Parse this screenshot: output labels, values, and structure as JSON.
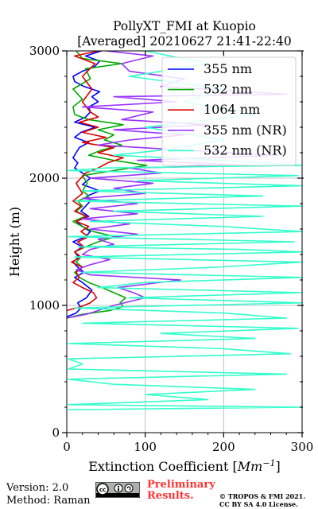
{
  "chart_data": {
    "type": "line",
    "title": "PollyXT_FMI at Kuopio",
    "subtitle": "[Averaged] 20210627 21:41-22:40",
    "xlabel_text": "Extinction Coefficient [",
    "xlabel_unit": "Mm",
    "xlabel_exp": "−1",
    "xlabel_close": "]",
    "ylabel": "Height (m)",
    "xlim": [
      0,
      300
    ],
    "ylim": [
      0,
      3000
    ],
    "xticks": [
      "0",
      "100",
      "200",
      "300"
    ],
    "yticks": [
      "0",
      "1000",
      "2000",
      "3000"
    ],
    "grid": true,
    "legend_position": "top-right",
    "series": [
      {
        "name": "355 nm",
        "color": "#0000ff",
        "points": [
          [
            0,
            910
          ],
          [
            12,
            940
          ],
          [
            18,
            980
          ],
          [
            14,
            1020
          ],
          [
            25,
            1060
          ],
          [
            32,
            1120
          ],
          [
            20,
            1180
          ],
          [
            10,
            1220
          ],
          [
            22,
            1260
          ],
          [
            14,
            1300
          ],
          [
            8,
            1340
          ],
          [
            15,
            1380
          ],
          [
            10,
            1420
          ],
          [
            20,
            1460
          ],
          [
            8,
            1500
          ],
          [
            24,
            1540
          ],
          [
            30,
            1580
          ],
          [
            20,
            1620
          ],
          [
            12,
            1660
          ],
          [
            28,
            1700
          ],
          [
            18,
            1740
          ],
          [
            24,
            1780
          ],
          [
            30,
            1820
          ],
          [
            26,
            1860
          ],
          [
            42,
            1900
          ],
          [
            20,
            1950
          ],
          [
            30,
            2000
          ],
          [
            20,
            2040
          ],
          [
            10,
            2080
          ],
          [
            14,
            2120
          ],
          [
            8,
            2160
          ],
          [
            12,
            2200
          ],
          [
            16,
            2240
          ],
          [
            28,
            2280
          ],
          [
            10,
            2320
          ],
          [
            18,
            2360
          ],
          [
            36,
            2400
          ],
          [
            10,
            2440
          ],
          [
            24,
            2480
          ],
          [
            30,
            2520
          ],
          [
            28,
            2560
          ],
          [
            40,
            2600
          ],
          [
            32,
            2640
          ],
          [
            42,
            2680
          ],
          [
            22,
            2720
          ],
          [
            10,
            2760
          ],
          [
            8,
            2800
          ],
          [
            20,
            2840
          ],
          [
            36,
            2880
          ],
          [
            42,
            2920
          ],
          [
            24,
            2960
          ],
          [
            44,
            3000
          ]
        ]
      },
      {
        "name": "532 nm",
        "color": "#00aa00",
        "points": [
          [
            0,
            900
          ],
          [
            20,
            930
          ],
          [
            55,
            960
          ],
          [
            72,
            990
          ],
          [
            68,
            1020
          ],
          [
            75,
            1060
          ],
          [
            60,
            1100
          ],
          [
            45,
            1140
          ],
          [
            28,
            1180
          ],
          [
            16,
            1220
          ],
          [
            10,
            1260
          ],
          [
            20,
            1300
          ],
          [
            12,
            1340
          ],
          [
            18,
            1380
          ],
          [
            10,
            1420
          ],
          [
            24,
            1460
          ],
          [
            40,
            1500
          ],
          [
            62,
            1540
          ],
          [
            34,
            1580
          ],
          [
            20,
            1620
          ],
          [
            8,
            1660
          ],
          [
            24,
            1700
          ],
          [
            12,
            1740
          ],
          [
            20,
            1780
          ],
          [
            14,
            1820
          ],
          [
            28,
            1860
          ],
          [
            20,
            1900
          ],
          [
            26,
            1960
          ],
          [
            20,
            2020
          ],
          [
            60,
            2060
          ],
          [
            102,
            2100
          ],
          [
            60,
            2140
          ],
          [
            28,
            2180
          ],
          [
            44,
            2220
          ],
          [
            70,
            2260
          ],
          [
            48,
            2300
          ],
          [
            60,
            2340
          ],
          [
            40,
            2380
          ],
          [
            72,
            2420
          ],
          [
            28,
            2460
          ],
          [
            10,
            2500
          ],
          [
            8,
            2560
          ],
          [
            20,
            2620
          ],
          [
            8,
            2700
          ],
          [
            30,
            2780
          ],
          [
            24,
            2860
          ],
          [
            70,
            2900
          ],
          [
            20,
            2940
          ],
          [
            12,
            3000
          ]
        ]
      },
      {
        "name": "1064 nm",
        "color": "#dd0000",
        "points": [
          [
            0,
            960
          ],
          [
            18,
            990
          ],
          [
            30,
            1020
          ],
          [
            38,
            1060
          ],
          [
            34,
            1100
          ],
          [
            20,
            1140
          ],
          [
            8,
            1180
          ],
          [
            16,
            1220
          ],
          [
            12,
            1260
          ],
          [
            20,
            1300
          ],
          [
            6,
            1340
          ],
          [
            18,
            1380
          ],
          [
            10,
            1420
          ],
          [
            22,
            1460
          ],
          [
            14,
            1500
          ],
          [
            28,
            1540
          ],
          [
            18,
            1580
          ],
          [
            28,
            1620
          ],
          [
            12,
            1660
          ],
          [
            26,
            1700
          ],
          [
            10,
            1740
          ],
          [
            18,
            1780
          ],
          [
            8,
            1820
          ],
          [
            20,
            1880
          ],
          [
            12,
            1960
          ],
          [
            24,
            2040
          ],
          [
            40,
            2080
          ],
          [
            52,
            2120
          ],
          [
            72,
            2160
          ],
          [
            40,
            2200
          ],
          [
            60,
            2240
          ],
          [
            20,
            2280
          ],
          [
            50,
            2320
          ],
          [
            20,
            2360
          ],
          [
            40,
            2400
          ],
          [
            16,
            2440
          ],
          [
            40,
            2480
          ],
          [
            30,
            2520
          ],
          [
            20,
            2600
          ],
          [
            32,
            2700
          ],
          [
            20,
            2800
          ],
          [
            36,
            2900
          ],
          [
            10,
            2960
          ],
          [
            40,
            3000
          ]
        ]
      },
      {
        "name": "355 nm (NR)",
        "color": "#9933ff",
        "points": [
          [
            0,
            900
          ],
          [
            25,
            930
          ],
          [
            40,
            960
          ],
          [
            60,
            1000
          ],
          [
            100,
            1060
          ],
          [
            85,
            1100
          ],
          [
            65,
            1140
          ],
          [
            145,
            1200
          ],
          [
            30,
            1240
          ],
          [
            12,
            1280
          ],
          [
            30,
            1320
          ],
          [
            55,
            1360
          ],
          [
            20,
            1400
          ],
          [
            30,
            1440
          ],
          [
            60,
            1480
          ],
          [
            40,
            1520
          ],
          [
            90,
            1560
          ],
          [
            30,
            1600
          ],
          [
            80,
            1640
          ],
          [
            20,
            1680
          ],
          [
            90,
            1720
          ],
          [
            30,
            1760
          ],
          [
            90,
            1800
          ],
          [
            20,
            1840
          ],
          [
            100,
            1880
          ],
          [
            60,
            1920
          ],
          [
            110,
            1960
          ],
          [
            30,
            2000
          ],
          [
            120,
            2040
          ],
          [
            80,
            2080
          ],
          [
            230,
            2100
          ],
          [
            90,
            2140
          ],
          [
            270,
            2180
          ],
          [
            150,
            2220
          ],
          [
            40,
            2260
          ],
          [
            80,
            2300
          ],
          [
            150,
            2340
          ],
          [
            60,
            2380
          ],
          [
            180,
            2420
          ],
          [
            70,
            2460
          ],
          [
            110,
            2520
          ],
          [
            20,
            2560
          ],
          [
            140,
            2600
          ],
          [
            60,
            2640
          ],
          [
            280,
            2660
          ],
          [
            120,
            2720
          ],
          [
            150,
            2780
          ],
          [
            80,
            2840
          ],
          [
            70,
            2900
          ],
          [
            110,
            2960
          ],
          [
            50,
            3000
          ]
        ]
      },
      {
        "name": "532 nm (NR)",
        "color": "#33ffcc",
        "points": [
          [
            2,
            180
          ],
          [
            300,
            200
          ],
          [
            2,
            220
          ],
          [
            180,
            260
          ],
          [
            100,
            300
          ],
          [
            240,
            340
          ],
          [
            60,
            380
          ],
          [
            2,
            420
          ],
          [
            280,
            460
          ],
          [
            2,
            500
          ],
          [
            20,
            540
          ],
          [
            2,
            580
          ],
          [
            285,
            620
          ],
          [
            200,
            660
          ],
          [
            2,
            700
          ],
          [
            240,
            740
          ],
          [
            120,
            780
          ],
          [
            295,
            820
          ],
          [
            20,
            860
          ],
          [
            280,
            900
          ],
          [
            200,
            940
          ],
          [
            10,
            980
          ],
          [
            300,
            1020
          ],
          [
            80,
            1060
          ],
          [
            300,
            1100
          ],
          [
            40,
            1140
          ],
          [
            100,
            1180
          ],
          [
            300,
            1220
          ],
          [
            20,
            1260
          ],
          [
            190,
            1300
          ],
          [
            300,
            1340
          ],
          [
            10,
            1380
          ],
          [
            300,
            1420
          ],
          [
            220,
            1440
          ],
          [
            15,
            1460
          ],
          [
            290,
            1500
          ],
          [
            2,
            1540
          ],
          [
            300,
            1580
          ],
          [
            200,
            1620
          ],
          [
            30,
            1660
          ],
          [
            250,
            1700
          ],
          [
            60,
            1740
          ],
          [
            300,
            1780
          ],
          [
            10,
            1820
          ],
          [
            250,
            1860
          ],
          [
            20,
            1900
          ],
          [
            300,
            1940
          ],
          [
            90,
            1980
          ],
          [
            295,
            2020
          ],
          [
            2,
            2060
          ],
          [
            50,
            2080
          ],
          [
            300,
            2100
          ],
          [
            200,
            2140
          ],
          [
            60,
            2180
          ],
          [
            120,
            2220
          ],
          [
            200,
            2300
          ],
          [
            100,
            2400
          ],
          [
            240,
            2500
          ],
          [
            150,
            2600
          ],
          [
            200,
            2700
          ],
          [
            80,
            2800
          ],
          [
            180,
            2900
          ],
          [
            100,
            3000
          ]
        ]
      }
    ]
  },
  "footer": {
    "version": "Version: 2.0",
    "method": "Method: Raman",
    "cc_badge": "cc BY SA",
    "preliminary_line1": "Preliminary",
    "preliminary_line2": "Results.",
    "copyright_line1": "© TROPOS & FMI 2021.",
    "copyright_line2": "CC BY SA 4.0 License."
  },
  "colors": {
    "preliminary": "#ff3333",
    "grid": "#b0b0b0"
  }
}
